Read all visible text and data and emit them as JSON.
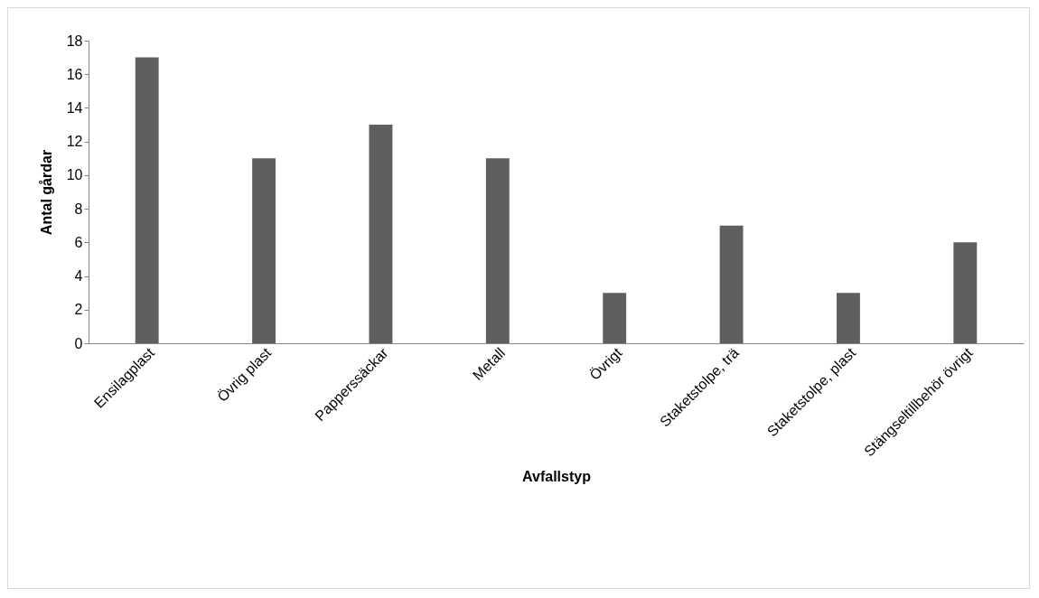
{
  "chart_data": {
    "type": "bar",
    "xlabel": "Avfallstyp",
    "ylabel": "Antal gårdar",
    "categories": [
      "Ensilagplast",
      "Övrig plast",
      "Papperssäckar",
      "Metall",
      "Övrigt",
      "Staketstolpe, trä",
      "Staketstolpe, plast",
      "Stängseltillbehör övrigt"
    ],
    "values": [
      17,
      11,
      13,
      11,
      3,
      7,
      3,
      6
    ],
    "color": "#5f5f5f",
    "ylim": [
      0,
      18
    ],
    "yticks": [
      0,
      2,
      4,
      6,
      8,
      10,
      12,
      14,
      16,
      18
    ],
    "grid": false
  }
}
